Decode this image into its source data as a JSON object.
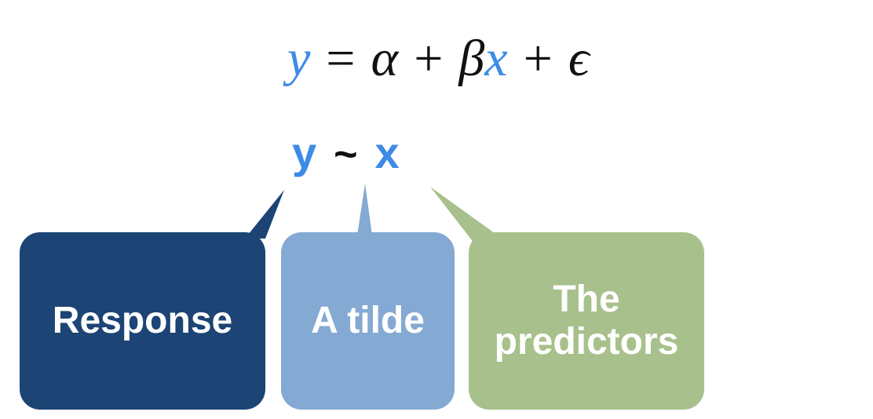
{
  "equation": {
    "y": "y",
    "equals": "=",
    "alpha": "α",
    "plus1": "+",
    "beta": "β",
    "x": "x",
    "plus2": "+",
    "epsilon": "ϵ"
  },
  "formula": {
    "response": "y",
    "tilde": "~",
    "predictor": "x"
  },
  "labels": {
    "response": "Response",
    "tilde": "A tilde",
    "predictors": "The predictors"
  },
  "colors": {
    "highlight_blue": "#3d8be6",
    "text_dark": "#111111",
    "response_box": "#1c4474",
    "tilde_box": "#84a9d2",
    "predictors_box": "#a8c18c",
    "label_text": "#ffffff"
  }
}
